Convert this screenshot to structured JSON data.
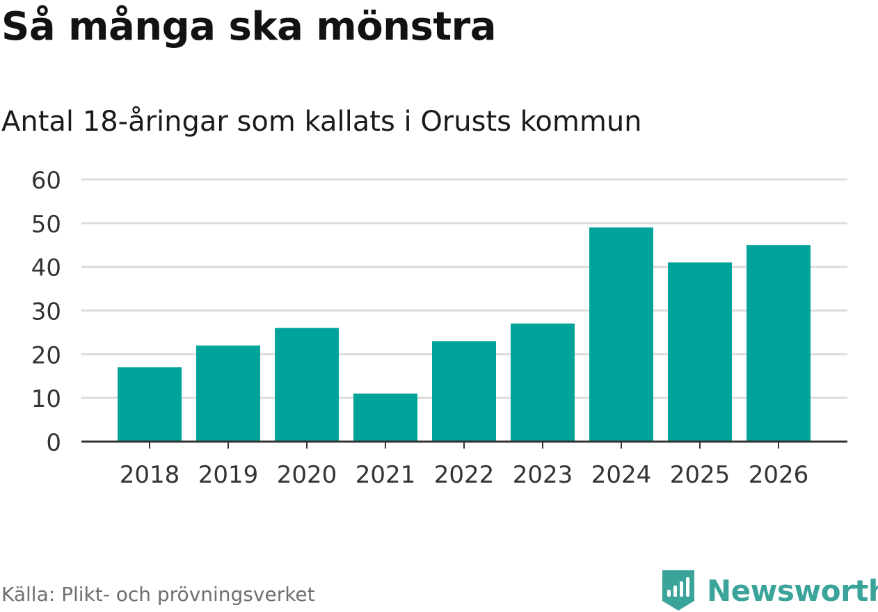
{
  "title": "Så många ska mönstra",
  "subtitle": "Antal 18-åringar som kallats i Orusts kommun",
  "source": "Källa: Plikt- och prövningsverket",
  "brand": {
    "name": "Newsworthy",
    "icon": "newsworthy-logo-icon",
    "color": "#3aa39a"
  },
  "colors": {
    "bar": "#00a39a",
    "grid": "#dcdcdc",
    "axis": "#333333",
    "tick_label": "#333333"
  },
  "chart_data": {
    "type": "bar",
    "title": "Så många ska mönstra",
    "subtitle": "Antal 18-åringar som kallats i Orusts kommun",
    "xlabel": "",
    "ylabel": "",
    "categories": [
      "2018",
      "2019",
      "2020",
      "2021",
      "2022",
      "2023",
      "2024",
      "2025",
      "2026"
    ],
    "values": [
      17,
      22,
      26,
      11,
      23,
      27,
      49,
      41,
      45
    ],
    "ylim": [
      0,
      60
    ],
    "yticks": [
      0,
      10,
      20,
      30,
      40,
      50,
      60
    ],
    "grid": true,
    "legend": "none"
  }
}
